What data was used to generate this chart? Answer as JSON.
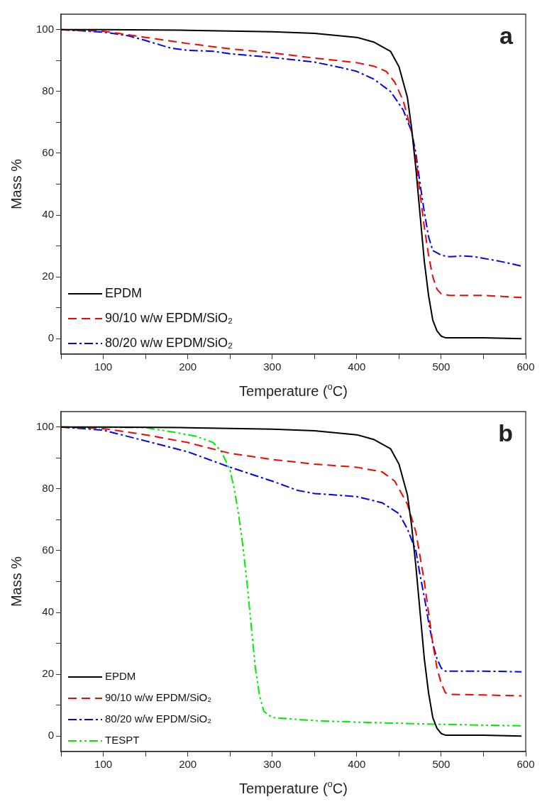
{
  "chart_data": [
    {
      "type": "line",
      "title": "a",
      "xlabel": "Temperature ($^{o}$C)",
      "ylabel": "Mass %",
      "xlim": [
        50,
        600
      ],
      "ylim": [
        -5,
        105
      ],
      "xticks": [
        {
          "value": 50,
          "label": null
        },
        100,
        {
          "value": 150,
          "label": null
        },
        200,
        {
          "value": 250,
          "label": null
        },
        300,
        {
          "value": 350,
          "label": null
        },
        400,
        {
          "value": 450,
          "label": null
        },
        500,
        {
          "value": 550,
          "label": null
        },
        600
      ],
      "yticks": [
        0,
        {
          "value": 10,
          "label": null
        },
        20,
        {
          "value": 30,
          "label": null
        },
        40,
        {
          "value": 50,
          "label": null
        },
        60,
        {
          "value": 70,
          "label": null
        },
        80,
        {
          "value": 90,
          "label": null
        },
        100
      ],
      "grid": false,
      "legend": "bottom left",
      "marker": "none",
      "series": [
        {
          "name": "EPDM",
          "color": "#000000",
          "line_style": "solid",
          "x": [
            50,
            100,
            200,
            300,
            350,
            400,
            420,
            440,
            450,
            460,
            465,
            470,
            475,
            480,
            485,
            490,
            495,
            500,
            505,
            550,
            595
          ],
          "values": [
            100,
            100,
            99.8,
            99.3,
            98.8,
            97.5,
            96,
            93,
            88,
            78,
            68,
            55,
            40,
            25,
            14,
            6,
            2.5,
            0.8,
            0.3,
            0.3,
            0
          ]
        },
        {
          "name": "90/10 w/w EPDM/SiO₂",
          "color": "#ff0000",
          "line_style": "dashed",
          "x": [
            50,
            100,
            150,
            200,
            250,
            300,
            350,
            400,
            420,
            435,
            445,
            455,
            465,
            470,
            475,
            480,
            485,
            490,
            495,
            500,
            510,
            550,
            595
          ],
          "values": [
            100,
            99.5,
            97.5,
            95.5,
            93.8,
            92.5,
            90.8,
            89.3,
            88.2,
            86.5,
            83,
            77,
            67,
            58,
            47,
            36,
            27,
            20,
            16,
            14.5,
            14,
            14,
            13.3
          ]
        },
        {
          "name": "80/20 w/w EPDM/SiO₂",
          "color": "#0000ff",
          "line_style": "dashdot",
          "x": [
            50,
            100,
            130,
            150,
            180,
            200,
            230,
            250,
            300,
            350,
            380,
            400,
            420,
            440,
            455,
            465,
            470,
            475,
            480,
            485,
            490,
            500,
            510,
            525,
            540,
            570,
            595
          ],
          "values": [
            100,
            99.2,
            98,
            96.5,
            94,
            93.3,
            93,
            92.2,
            91,
            89.5,
            87.8,
            86.5,
            84,
            80,
            74,
            67,
            60,
            50,
            41,
            33,
            28.5,
            27,
            26.5,
            26.8,
            26.5,
            25,
            23.5
          ]
        }
      ]
    },
    {
      "type": "line",
      "title": "b",
      "xlabel": "Temperature ($^{o}$C)",
      "ylabel": "Mass %",
      "xlim": [
        50,
        600
      ],
      "ylim": [
        -5,
        105
      ],
      "xticks": [
        {
          "value": 50,
          "label": null
        },
        100,
        {
          "value": 150,
          "label": null
        },
        200,
        {
          "value": 250,
          "label": null
        },
        300,
        {
          "value": 350,
          "label": null
        },
        400,
        {
          "value": 450,
          "label": null
        },
        500,
        {
          "value": 550,
          "label": null
        },
        600
      ],
      "yticks": [
        0,
        {
          "value": 10,
          "label": null
        },
        20,
        {
          "value": 30,
          "label": null
        },
        40,
        {
          "value": 50,
          "label": null
        },
        60,
        {
          "value": 70,
          "label": null
        },
        80,
        {
          "value": 90,
          "label": null
        },
        100
      ],
      "grid": false,
      "legend": "bottom left",
      "marker": "none",
      "series": [
        {
          "name": "EPDM",
          "color": "#000000",
          "line_style": "solid",
          "x": [
            50,
            100,
            200,
            300,
            350,
            400,
            420,
            440,
            450,
            460,
            465,
            470,
            475,
            480,
            485,
            490,
            495,
            500,
            505,
            550,
            595
          ],
          "values": [
            100,
            100,
            99.8,
            99.3,
            98.8,
            97.5,
            96,
            93,
            88,
            78,
            68,
            55,
            40,
            25,
            14,
            6,
            2.5,
            0.8,
            0.3,
            0.3,
            0
          ]
        },
        {
          "name": "90/10 w/w EPDM/SiO₂",
          "color": "#ff0000",
          "line_style": "dashed",
          "x": [
            50,
            100,
            150,
            200,
            250,
            300,
            350,
            400,
            430,
            445,
            460,
            470,
            480,
            485,
            490,
            495,
            500,
            505,
            510,
            550,
            595
          ],
          "values": [
            100,
            99.5,
            97.5,
            95,
            91.5,
            89.5,
            88,
            87,
            85.5,
            82.5,
            75,
            66,
            50,
            40,
            30,
            22,
            17,
            14,
            13.5,
            13.3,
            13
          ]
        },
        {
          "name": "80/20 w/w EPDM/SiO₂",
          "color": "#0000ff",
          "line_style": "dashdot",
          "x": [
            50,
            100,
            150,
            200,
            250,
            300,
            330,
            350,
            400,
            430,
            450,
            460,
            470,
            475,
            480,
            485,
            490,
            495,
            500,
            505,
            550,
            595
          ],
          "values": [
            100,
            99,
            95.5,
            92,
            87,
            82.5,
            79.5,
            78.5,
            77.5,
            75.5,
            72,
            67,
            60,
            52,
            45,
            37,
            30,
            25,
            22,
            21,
            21,
            20.8
          ]
        },
        {
          "name": "TESPT",
          "color": "#00ee00",
          "line_style": "dashdotdot",
          "x": [
            50,
            150,
            180,
            210,
            230,
            240,
            250,
            255,
            260,
            265,
            270,
            275,
            280,
            285,
            290,
            300,
            350,
            400,
            500,
            595
          ],
          "values": [
            100,
            99.8,
            98.5,
            97,
            95,
            92,
            86,
            80,
            72,
            62,
            50,
            36,
            22,
            13,
            8,
            6,
            5,
            4.5,
            3.8,
            3.3
          ]
        }
      ]
    }
  ]
}
